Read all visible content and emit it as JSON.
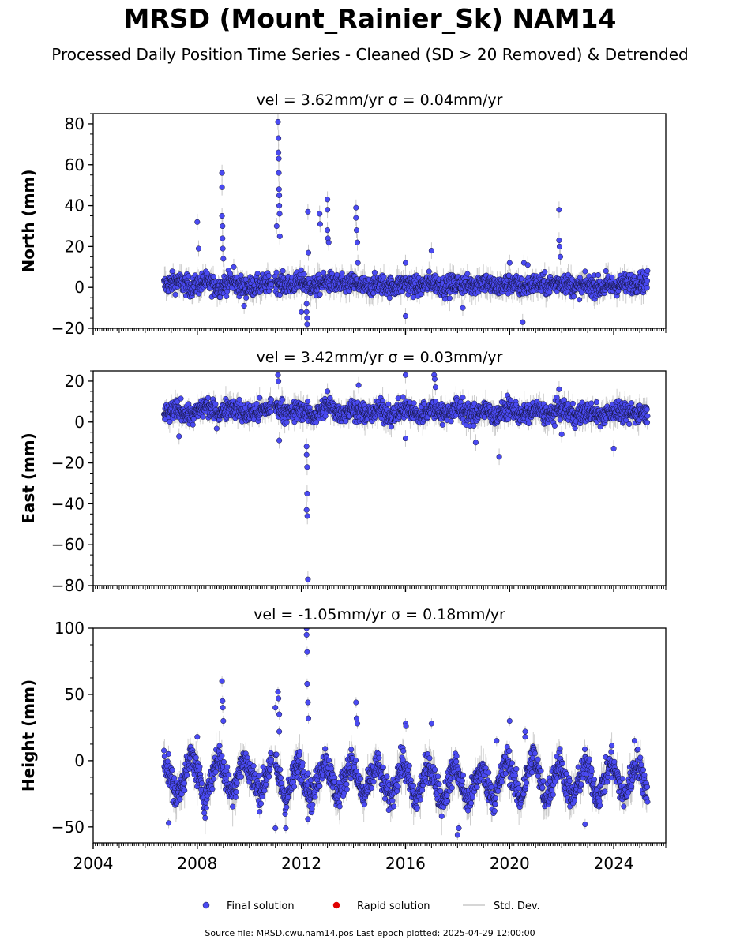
{
  "figure": {
    "title": "MRSD (Mount_Rainier_Sk) NAM14",
    "subtitle": "Processed Daily Position Time Series - Cleaned (SD > 20 Removed) & Detrended",
    "footer": "Source file: MRSD.cwu.nam14.pos  Last epoch plotted: 2025-04-29 12:00:00",
    "colors": {
      "final": "#4a4af2",
      "rapid": "#e00000",
      "stddev": "#c8c8c8",
      "marker_edge": "#111133"
    }
  },
  "legend": {
    "placement": "bottom-center",
    "items": [
      {
        "label": "Final solution",
        "marker": "circle",
        "color": "#4a4af2"
      },
      {
        "label": "Rapid solution",
        "marker": "circle",
        "color": "#e00000"
      },
      {
        "label": "Std. Dev.",
        "marker": "line",
        "color": "#c8c8c8"
      }
    ]
  },
  "chart_data": [
    {
      "type": "scatter",
      "title": "vel = 3.62mm/yr   σ = 0.04mm/yr",
      "ylabel": "North (mm)",
      "xlabel": "",
      "xlim": [
        2004.0,
        2026.0
      ],
      "ylim": [
        -20,
        85
      ],
      "yticks": [
        -20,
        0,
        20,
        40,
        60,
        80
      ],
      "xticks": [
        2004,
        2008,
        2012,
        2016,
        2020,
        2024
      ],
      "show_xtick_labels": false,
      "grid": false,
      "baseline": [
        {
          "x": 2006.7,
          "y": 1
        },
        {
          "x": 2007.2,
          "y": 3
        },
        {
          "x": 2007.8,
          "y": 0
        },
        {
          "x": 2008.3,
          "y": 3
        },
        {
          "x": 2008.8,
          "y": 0
        },
        {
          "x": 2009.3,
          "y": 3
        },
        {
          "x": 2009.8,
          "y": 0
        },
        {
          "x": 2010.4,
          "y": 1
        },
        {
          "x": 2011.0,
          "y": 3
        },
        {
          "x": 2011.5,
          "y": 1
        },
        {
          "x": 2012.0,
          "y": 3
        },
        {
          "x": 2012.5,
          "y": 0
        },
        {
          "x": 2013.0,
          "y": 3
        },
        {
          "x": 2013.5,
          "y": 1
        },
        {
          "x": 2014.0,
          "y": 2
        },
        {
          "x": 2014.5,
          "y": 0
        },
        {
          "x": 2015.0,
          "y": 2
        },
        {
          "x": 2015.5,
          "y": 0
        },
        {
          "x": 2016.0,
          "y": 2
        },
        {
          "x": 2016.5,
          "y": 0
        },
        {
          "x": 2017.0,
          "y": 3
        },
        {
          "x": 2017.5,
          "y": 0
        },
        {
          "x": 2018.0,
          "y": 2
        },
        {
          "x": 2018.5,
          "y": 1
        },
        {
          "x": 2019.0,
          "y": 3
        },
        {
          "x": 2019.5,
          "y": 0
        },
        {
          "x": 2020.0,
          "y": 2
        },
        {
          "x": 2020.5,
          "y": 0
        },
        {
          "x": 2021.0,
          "y": 2
        },
        {
          "x": 2021.5,
          "y": 1
        },
        {
          "x": 2022.0,
          "y": 3
        },
        {
          "x": 2022.5,
          "y": 0
        },
        {
          "x": 2023.0,
          "y": 1
        },
        {
          "x": 2023.5,
          "y": 0
        },
        {
          "x": 2024.0,
          "y": 1
        },
        {
          "x": 2024.5,
          "y": 2
        },
        {
          "x": 2025.3,
          "y": 3
        }
      ],
      "scatter": 4,
      "outliers": [
        {
          "x": 2008.0,
          "y": 32
        },
        {
          "x": 2008.05,
          "y": 19
        },
        {
          "x": 2008.95,
          "y": 56
        },
        {
          "x": 2008.95,
          "y": 49
        },
        {
          "x": 2008.95,
          "y": 35
        },
        {
          "x": 2008.97,
          "y": 30
        },
        {
          "x": 2008.97,
          "y": 24
        },
        {
          "x": 2008.98,
          "y": 19
        },
        {
          "x": 2009.0,
          "y": 14
        },
        {
          "x": 2009.4,
          "y": 10
        },
        {
          "x": 2009.8,
          "y": -9
        },
        {
          "x": 2011.1,
          "y": 81
        },
        {
          "x": 2011.12,
          "y": 73
        },
        {
          "x": 2011.12,
          "y": 66
        },
        {
          "x": 2011.13,
          "y": 63
        },
        {
          "x": 2011.13,
          "y": 56
        },
        {
          "x": 2011.14,
          "y": 48
        },
        {
          "x": 2011.15,
          "y": 45
        },
        {
          "x": 2011.15,
          "y": 40
        },
        {
          "x": 2011.16,
          "y": 36
        },
        {
          "x": 2011.05,
          "y": 30
        },
        {
          "x": 2011.17,
          "y": 25
        },
        {
          "x": 2012.25,
          "y": 37
        },
        {
          "x": 2012.27,
          "y": 17
        },
        {
          "x": 2012.2,
          "y": -8
        },
        {
          "x": 2012.2,
          "y": -12
        },
        {
          "x": 2012.22,
          "y": -15
        },
        {
          "x": 2012.22,
          "y": -18
        },
        {
          "x": 2012.0,
          "y": -12
        },
        {
          "x": 2013.0,
          "y": 43
        },
        {
          "x": 2013.0,
          "y": 38
        },
        {
          "x": 2013.0,
          "y": 28
        },
        {
          "x": 2013.02,
          "y": 24
        },
        {
          "x": 2013.05,
          "y": 22
        },
        {
          "x": 2012.7,
          "y": 36
        },
        {
          "x": 2012.72,
          "y": 31
        },
        {
          "x": 2014.1,
          "y": 39
        },
        {
          "x": 2014.1,
          "y": 34
        },
        {
          "x": 2014.12,
          "y": 28
        },
        {
          "x": 2014.15,
          "y": 22
        },
        {
          "x": 2014.17,
          "y": 12
        },
        {
          "x": 2016.0,
          "y": -14
        },
        {
          "x": 2016.0,
          "y": 12
        },
        {
          "x": 2017.0,
          "y": 18
        },
        {
          "x": 2018.2,
          "y": -10
        },
        {
          "x": 2020.0,
          "y": 12
        },
        {
          "x": 2020.5,
          "y": -17
        },
        {
          "x": 2020.55,
          "y": 12
        },
        {
          "x": 2020.7,
          "y": 11
        },
        {
          "x": 2021.9,
          "y": 38
        },
        {
          "x": 2021.9,
          "y": 23
        },
        {
          "x": 2021.92,
          "y": 20
        },
        {
          "x": 2021.95,
          "y": 15
        },
        {
          "x": 2023.7,
          "y": 8
        }
      ]
    },
    {
      "type": "scatter",
      "title": "vel = 3.42mm/yr   σ = 0.03mm/yr",
      "ylabel": "East (mm)",
      "xlabel": "",
      "xlim": [
        2004.0,
        2026.0
      ],
      "ylim": [
        -80,
        25
      ],
      "yticks": [
        -80,
        -60,
        -40,
        -20,
        0,
        20
      ],
      "xticks": [
        2004,
        2008,
        2012,
        2016,
        2020,
        2024
      ],
      "show_xtick_labels": false,
      "grid": false,
      "baseline": [
        {
          "x": 2006.7,
          "y": 3
        },
        {
          "x": 2007.2,
          "y": 6
        },
        {
          "x": 2007.8,
          "y": 3
        },
        {
          "x": 2008.3,
          "y": 8
        },
        {
          "x": 2008.8,
          "y": 4
        },
        {
          "x": 2009.3,
          "y": 8
        },
        {
          "x": 2009.8,
          "y": 4
        },
        {
          "x": 2010.4,
          "y": 5
        },
        {
          "x": 2011.0,
          "y": 8
        },
        {
          "x": 2011.5,
          "y": 4
        },
        {
          "x": 2012.0,
          "y": 6
        },
        {
          "x": 2012.5,
          "y": 3
        },
        {
          "x": 2013.0,
          "y": 8
        },
        {
          "x": 2013.5,
          "y": 4
        },
        {
          "x": 2014.0,
          "y": 7
        },
        {
          "x": 2014.5,
          "y": 3
        },
        {
          "x": 2015.0,
          "y": 6
        },
        {
          "x": 2015.5,
          "y": 3
        },
        {
          "x": 2016.0,
          "y": 7
        },
        {
          "x": 2016.5,
          "y": 3
        },
        {
          "x": 2017.0,
          "y": 7
        },
        {
          "x": 2017.5,
          "y": 4
        },
        {
          "x": 2018.0,
          "y": 7
        },
        {
          "x": 2018.5,
          "y": 3
        },
        {
          "x": 2019.0,
          "y": 6
        },
        {
          "x": 2019.5,
          "y": 3
        },
        {
          "x": 2020.0,
          "y": 7
        },
        {
          "x": 2020.5,
          "y": 3
        },
        {
          "x": 2021.0,
          "y": 6
        },
        {
          "x": 2021.5,
          "y": 3
        },
        {
          "x": 2022.0,
          "y": 7
        },
        {
          "x": 2022.5,
          "y": 3
        },
        {
          "x": 2023.0,
          "y": 5
        },
        {
          "x": 2023.5,
          "y": 3
        },
        {
          "x": 2024.0,
          "y": 6
        },
        {
          "x": 2024.5,
          "y": 4
        },
        {
          "x": 2025.3,
          "y": 5
        }
      ],
      "scatter": 4,
      "outliers": [
        {
          "x": 2007.3,
          "y": -7
        },
        {
          "x": 2011.1,
          "y": 23
        },
        {
          "x": 2011.12,
          "y": 20
        },
        {
          "x": 2011.15,
          "y": -9
        },
        {
          "x": 2012.2,
          "y": -12
        },
        {
          "x": 2012.2,
          "y": -16
        },
        {
          "x": 2012.22,
          "y": -22
        },
        {
          "x": 2012.22,
          "y": -35
        },
        {
          "x": 2012.2,
          "y": -43
        },
        {
          "x": 2012.23,
          "y": -46
        },
        {
          "x": 2012.25,
          "y": -77
        },
        {
          "x": 2013.0,
          "y": 15
        },
        {
          "x": 2014.2,
          "y": 18
        },
        {
          "x": 2016.0,
          "y": 23
        },
        {
          "x": 2016.0,
          "y": -8
        },
        {
          "x": 2017.1,
          "y": 23
        },
        {
          "x": 2017.12,
          "y": 21
        },
        {
          "x": 2017.15,
          "y": 17
        },
        {
          "x": 2018.2,
          "y": 12
        },
        {
          "x": 2018.7,
          "y": -10
        },
        {
          "x": 2019.6,
          "y": -17
        },
        {
          "x": 2021.9,
          "y": 16
        },
        {
          "x": 2022.0,
          "y": -6
        },
        {
          "x": 2024.0,
          "y": -13
        }
      ]
    },
    {
      "type": "scatter",
      "title": "vel = -1.05mm/yr   σ = 0.18mm/yr",
      "ylabel": "Height (mm)",
      "xlabel": "",
      "xlim": [
        2004.0,
        2026.0
      ],
      "ylim": [
        -62,
        100
      ],
      "yticks": [
        -50,
        0,
        50,
        100
      ],
      "xticks": [
        2004,
        2008,
        2012,
        2016,
        2020,
        2024
      ],
      "xtick_labels": [
        "2004",
        "2008",
        "2012",
        "2016",
        "2020",
        "2024"
      ],
      "show_xtick_labels": true,
      "grid": false,
      "baseline": [
        {
          "x": 2006.7,
          "y": 5
        },
        {
          "x": 2007.2,
          "y": -28
        },
        {
          "x": 2007.8,
          "y": 5
        },
        {
          "x": 2008.3,
          "y": -30
        },
        {
          "x": 2008.8,
          "y": 5
        },
        {
          "x": 2009.3,
          "y": -25
        },
        {
          "x": 2009.8,
          "y": 2
        },
        {
          "x": 2010.4,
          "y": -25
        },
        {
          "x": 2010.9,
          "y": 3
        },
        {
          "x": 2011.4,
          "y": -30
        },
        {
          "x": 2011.9,
          "y": 0
        },
        {
          "x": 2012.4,
          "y": -28
        },
        {
          "x": 2012.9,
          "y": 2
        },
        {
          "x": 2013.4,
          "y": -28
        },
        {
          "x": 2013.9,
          "y": 0
        },
        {
          "x": 2014.4,
          "y": -28
        },
        {
          "x": 2014.9,
          "y": -2
        },
        {
          "x": 2015.4,
          "y": -30
        },
        {
          "x": 2015.9,
          "y": 0
        },
        {
          "x": 2016.4,
          "y": -32
        },
        {
          "x": 2016.9,
          "y": -2
        },
        {
          "x": 2017.4,
          "y": -32
        },
        {
          "x": 2017.9,
          "y": -2
        },
        {
          "x": 2018.4,
          "y": -32
        },
        {
          "x": 2018.9,
          "y": -5
        },
        {
          "x": 2019.4,
          "y": -30
        },
        {
          "x": 2019.9,
          "y": 2
        },
        {
          "x": 2020.4,
          "y": -30
        },
        {
          "x": 2020.9,
          "y": 5
        },
        {
          "x": 2021.4,
          "y": -30
        },
        {
          "x": 2021.9,
          "y": 0
        },
        {
          "x": 2022.4,
          "y": -30
        },
        {
          "x": 2022.9,
          "y": -2
        },
        {
          "x": 2023.4,
          "y": -28
        },
        {
          "x": 2023.9,
          "y": 0
        },
        {
          "x": 2024.4,
          "y": -28
        },
        {
          "x": 2024.9,
          "y": 0
        },
        {
          "x": 2025.3,
          "y": -25
        }
      ],
      "scatter": 9,
      "outliers": [
        {
          "x": 2006.9,
          "y": -47
        },
        {
          "x": 2008.0,
          "y": 18
        },
        {
          "x": 2008.95,
          "y": 60
        },
        {
          "x": 2008.97,
          "y": 45
        },
        {
          "x": 2008.98,
          "y": 40
        },
        {
          "x": 2009.0,
          "y": 30
        },
        {
          "x": 2011.0,
          "y": 40
        },
        {
          "x": 2011.1,
          "y": 52
        },
        {
          "x": 2011.12,
          "y": 47
        },
        {
          "x": 2011.15,
          "y": 35
        },
        {
          "x": 2011.15,
          "y": 22
        },
        {
          "x": 2011.0,
          "y": -51
        },
        {
          "x": 2011.4,
          "y": -51
        },
        {
          "x": 2012.2,
          "y": 100
        },
        {
          "x": 2012.2,
          "y": 95
        },
        {
          "x": 2012.22,
          "y": 82
        },
        {
          "x": 2012.22,
          "y": 58
        },
        {
          "x": 2012.25,
          "y": 44
        },
        {
          "x": 2012.27,
          "y": 32
        },
        {
          "x": 2012.25,
          "y": -44
        },
        {
          "x": 2014.1,
          "y": 44
        },
        {
          "x": 2014.12,
          "y": 32
        },
        {
          "x": 2014.15,
          "y": 28
        },
        {
          "x": 2016.0,
          "y": 28
        },
        {
          "x": 2016.02,
          "y": 26
        },
        {
          "x": 2017.0,
          "y": 28
        },
        {
          "x": 2018.0,
          "y": -56
        },
        {
          "x": 2018.05,
          "y": -51
        },
        {
          "x": 2019.5,
          "y": 15
        },
        {
          "x": 2020.0,
          "y": 30
        },
        {
          "x": 2020.6,
          "y": 22
        },
        {
          "x": 2020.6,
          "y": 18
        },
        {
          "x": 2022.9,
          "y": -48
        },
        {
          "x": 2024.8,
          "y": 15
        }
      ]
    }
  ]
}
